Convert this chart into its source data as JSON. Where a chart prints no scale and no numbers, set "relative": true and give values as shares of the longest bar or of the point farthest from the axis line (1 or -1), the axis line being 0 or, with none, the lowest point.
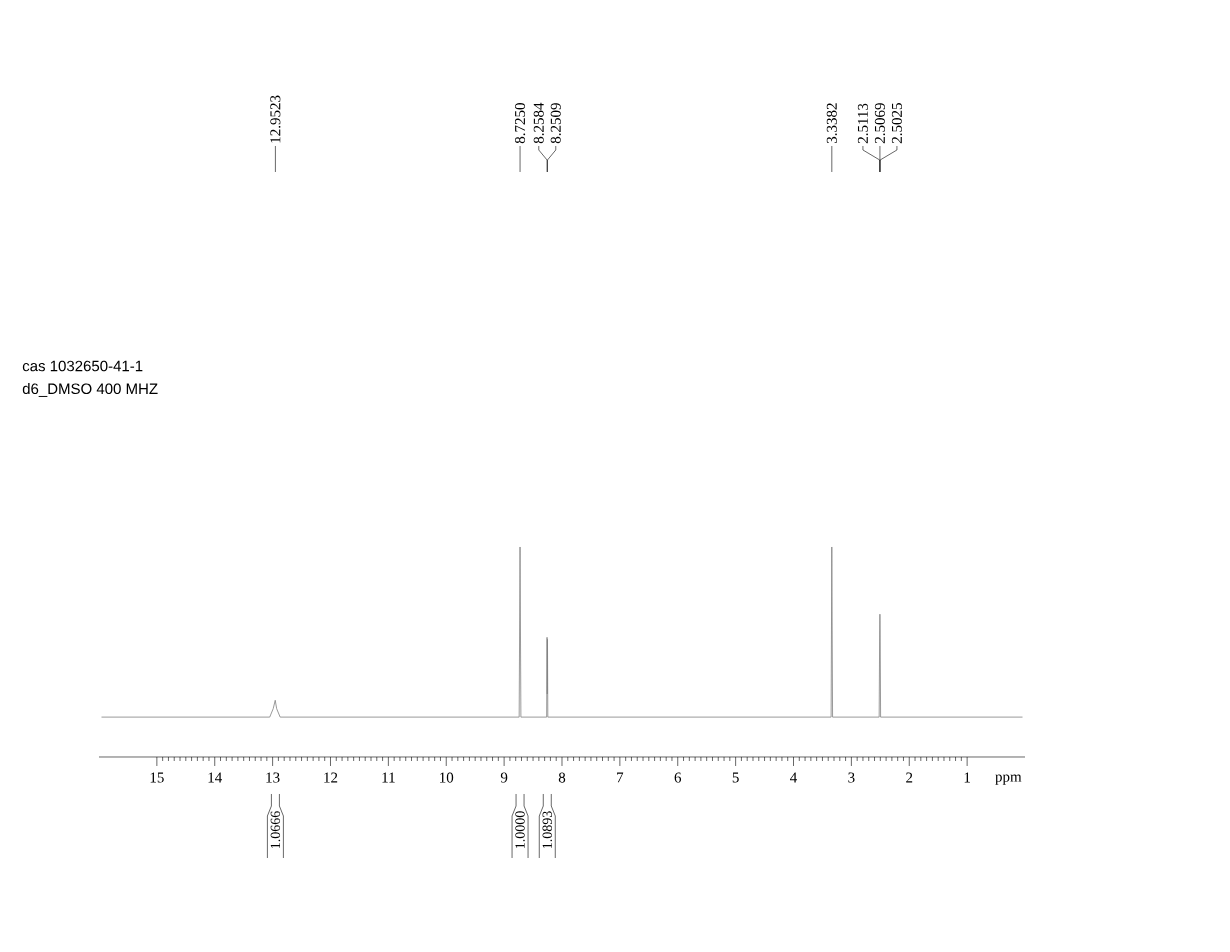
{
  "chart_data": {
    "type": "line",
    "relative": true,
    "xlabel": "ppm",
    "xlim": [
      16,
      0
    ],
    "xticks": [
      15,
      14,
      13,
      12,
      11,
      10,
      9,
      8,
      7,
      6,
      5,
      4,
      3,
      2,
      1
    ],
    "series": [
      {
        "color": "#808080",
        "x": [
          15.95,
          13.05,
          12.99,
          12.955,
          12.93,
          12.87,
          8.74,
          8.725,
          8.71,
          8.265,
          8.2584,
          8.2545,
          8.2509,
          8.245,
          3.35,
          3.3382,
          3.325,
          2.52,
          2.5113,
          2.5069,
          2.5025,
          2.495,
          0.05
        ],
        "values": [
          0.19,
          0.19,
          0.23,
          0.27,
          0.23,
          0.19,
          0.19,
          1,
          0.19,
          0.19,
          0.57,
          0.3,
          0.56,
          0.19,
          0.19,
          1,
          0.19,
          0.19,
          0.6,
          0.68,
          0.6,
          0.19,
          0.19
        ]
      }
    ],
    "annotations": [
      "cas 1032650-41-1",
      "d6_DMSO 400 MHZ",
      {
        "text": "12.9523",
        "x": 12.9523
      },
      {
        "text": "8.7250",
        "x": 8.725
      },
      {
        "text": "8.2584",
        "x": 8.2584
      },
      {
        "text": "8.2509",
        "x": 8.2509
      },
      {
        "text": "3.3382",
        "x": 3.3382
      },
      {
        "text": "2.5113",
        "x": 2.5113
      },
      {
        "text": "2.5069",
        "x": 2.5069
      },
      {
        "text": "2.5025",
        "x": 2.5025
      },
      "1.0666",
      "1.0000",
      "1.0893"
    ]
  }
}
